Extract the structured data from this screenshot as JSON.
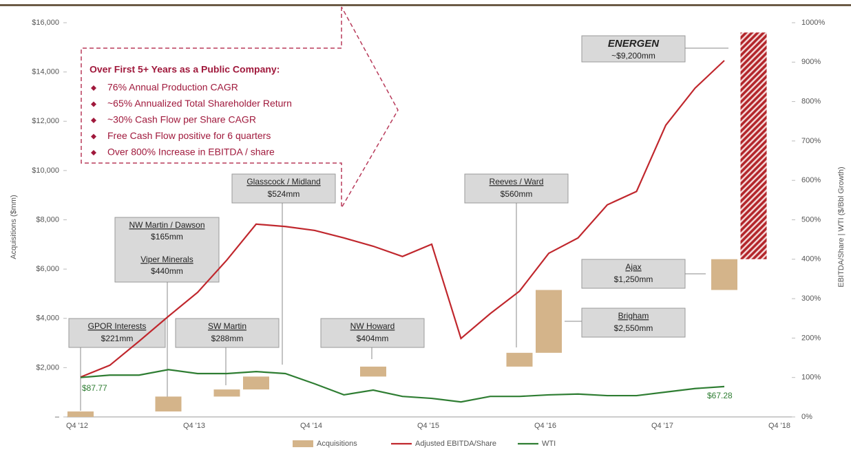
{
  "chart_data": {
    "type": "bar-line",
    "categories": [
      "Q4 '12",
      null,
      null,
      null,
      "Q4 '13",
      null,
      null,
      null,
      "Q4 '14",
      null,
      null,
      null,
      "Q4 '15",
      null,
      null,
      null,
      "Q4 '16",
      null,
      null,
      null,
      "Q4 '17",
      null,
      null,
      null,
      "Q4 '18"
    ],
    "ylabel": "Acquisitions ($mm)",
    "y2label": "EBITDA/Share | WTI ($/Bbl Growth)",
    "ylim": [
      0,
      16000
    ],
    "yticks": [
      {
        "value": 0,
        "label": "–"
      },
      {
        "value": 2000,
        "label": "$2,000"
      },
      {
        "value": 4000,
        "label": "$4,000"
      },
      {
        "value": 6000,
        "label": "$6,000"
      },
      {
        "value": 8000,
        "label": "$8,000"
      },
      {
        "value": 10000,
        "label": "$10,000"
      },
      {
        "value": 12000,
        "label": "$12,000"
      },
      {
        "value": 14000,
        "label": "$14,000"
      },
      {
        "value": 16000,
        "label": "$16,000"
      }
    ],
    "y2lim": [
      0,
      1000
    ],
    "y2ticks": [
      {
        "value": 0,
        "label": "0%"
      },
      {
        "value": 100,
        "label": "100%"
      },
      {
        "value": 200,
        "label": "200%"
      },
      {
        "value": 300,
        "label": "300%"
      },
      {
        "value": 400,
        "label": "400%"
      },
      {
        "value": 500,
        "label": "500%"
      },
      {
        "value": 600,
        "label": "600%"
      },
      {
        "value": 700,
        "label": "700%"
      },
      {
        "value": 800,
        "label": "800%"
      },
      {
        "value": 900,
        "label": "900%"
      },
      {
        "value": 1000,
        "label": "1000%"
      }
    ],
    "series": [
      {
        "name": "Acquisitions",
        "type": "bar",
        "color": "#d4b48a",
        "hatch_color": "#b3262b",
        "values": [
          221,
          null,
          null,
          605,
          null,
          288,
          524,
          null,
          null,
          null,
          404,
          null,
          null,
          null,
          null,
          560,
          2550,
          null,
          null,
          null,
          null,
          null,
          1250,
          9200,
          null
        ]
      },
      {
        "name": "Adjusted EBITDA/Share",
        "type": "line",
        "axis": "y2",
        "color": "#c0272d",
        "values": [
          101,
          131,
          192,
          255,
          316,
          398,
          489,
          483,
          473,
          454,
          433,
          407,
          438,
          199,
          262,
          319,
          415,
          454,
          538,
          572,
          740,
          834,
          904,
          null,
          null
        ]
      },
      {
        "name": "WTI",
        "type": "line",
        "axis": "y2",
        "color": "#2e7d32",
        "values": [
          100,
          106,
          106,
          120,
          110,
          110,
          115,
          110,
          84,
          56,
          68,
          52,
          47,
          38,
          52,
          52,
          56,
          58,
          54,
          54,
          63,
          72,
          77,
          null,
          null
        ]
      }
    ],
    "wti_labels": [
      "$87.77",
      "$67.28"
    ],
    "annotations": [
      {
        "lines": [
          "GPOR Interests",
          "$221mm"
        ]
      },
      {
        "lines": [
          "NW Martin / Dawson",
          "$165mm",
          "Viper Minerals",
          "$440mm"
        ]
      },
      {
        "lines": [
          "SW Martin",
          "$288mm"
        ]
      },
      {
        "lines": [
          "Glasscock / Midland",
          "$524mm"
        ]
      },
      {
        "lines": [
          "NW Howard",
          "$404mm"
        ]
      },
      {
        "lines": [
          "Reeves / Ward",
          "$560mm"
        ]
      },
      {
        "lines": [
          "Brigham",
          "$2,550mm"
        ]
      },
      {
        "lines": [
          "Ajax",
          "$1,250mm"
        ]
      },
      {
        "lines": [
          "ENERGEN",
          "~$9,200mm"
        ]
      }
    ],
    "callout": {
      "title": "Over First 5+ Years as a Public Company:",
      "items": [
        "76% Annual Production CAGR",
        "~65% Annualized Total Shareholder Return",
        "~30% Cash Flow per Share CAGR",
        "Free Cash Flow positive for 6 quarters",
        "Over 800% Increase in EBITDA / share"
      ]
    }
  }
}
